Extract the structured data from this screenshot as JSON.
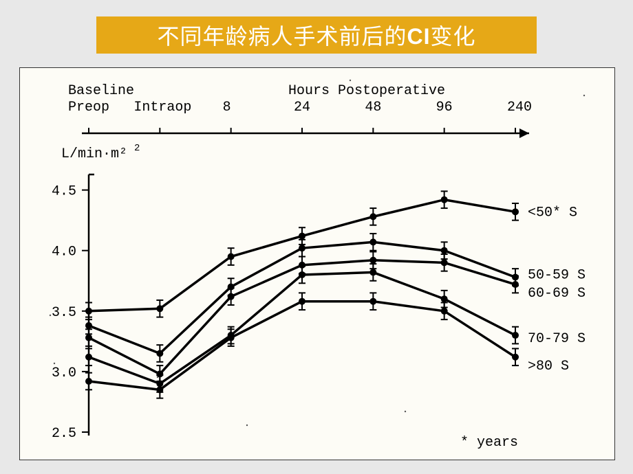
{
  "title": {
    "prefix": "不同年龄病人手术前后的",
    "bold": "CI",
    "suffix": "变化"
  },
  "chart": {
    "type": "line",
    "background_color": "#fdfcf6",
    "title_font": "Courier",
    "x_axis": {
      "label_top_left": "Baseline\nPreop",
      "label_intraop": "Intraop",
      "label_hours": "Hours  Postoperative",
      "ticks": [
        "8",
        "24",
        "48",
        "96",
        "240"
      ],
      "tick_positions": [
        0,
        1,
        2,
        3,
        4,
        5,
        6
      ],
      "fontsize": 20
    },
    "y_axis": {
      "label": "L/min·m²",
      "ticks": [
        2.5,
        3.0,
        3.5,
        4.0,
        4.5
      ],
      "ylim": [
        2.5,
        4.6
      ],
      "fontsize": 20
    },
    "footnote": "* years",
    "line_color": "#000000",
    "line_width": 3.5,
    "marker_radius": 5,
    "error_bar_half": 0.07,
    "error_cap_width": 10,
    "series": [
      {
        "name": "<50* S",
        "values": [
          3.5,
          3.52,
          3.95,
          4.12,
          4.28,
          4.42,
          4.32
        ]
      },
      {
        "name": "50-59 S",
        "values": [
          3.38,
          3.15,
          3.7,
          4.02,
          4.07,
          4.0,
          3.78
        ]
      },
      {
        "name": "60-69 S",
        "values": [
          3.28,
          2.98,
          3.62,
          3.88,
          3.92,
          3.9,
          3.72
        ]
      },
      {
        "name": "70-79 S",
        "values": [
          3.12,
          2.9,
          3.3,
          3.8,
          3.82,
          3.6,
          3.3
        ]
      },
      {
        "name": ">80 S",
        "values": [
          2.92,
          2.85,
          3.28,
          3.58,
          3.58,
          3.5,
          3.12
        ]
      }
    ]
  },
  "colors": {
    "page_bg": "#e8e8e8",
    "title_bg": "#e6a817",
    "title_text": "#ffffff",
    "chart_bg": "#fdfcf6",
    "ink": "#000000"
  }
}
